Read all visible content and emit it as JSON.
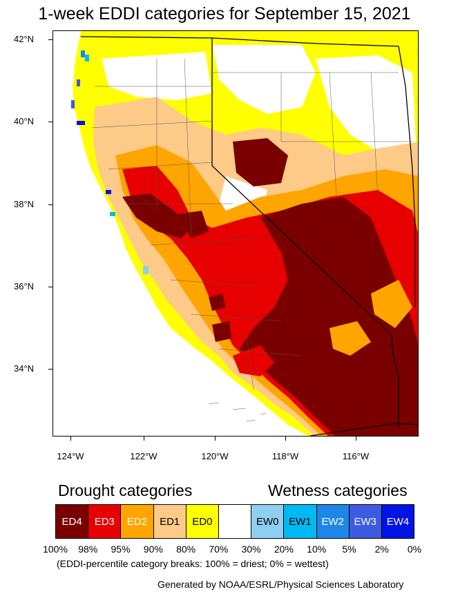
{
  "title": "1-week EDDI categories for September 15, 2021",
  "map": {
    "lat_labels": [
      "42°N",
      "40°N",
      "38°N",
      "36°N",
      "34°N"
    ],
    "lon_labels": [
      "124°W",
      "122°W",
      "120°W",
      "118°W",
      "116°W"
    ],
    "region": "California and Nevada"
  },
  "legend": {
    "drought_heading": "Drought categories",
    "wetness_heading": "Wetness categories",
    "categories": [
      {
        "label": "ED4",
        "color": "#7a0000",
        "text_color": "#ffffff"
      },
      {
        "label": "ED3",
        "color": "#e60000",
        "text_color": "#ffffff"
      },
      {
        "label": "ED2",
        "color": "#ffa500",
        "text_color": "#ffffff"
      },
      {
        "label": "ED1",
        "color": "#fdca88",
        "text_color": "#000000"
      },
      {
        "label": "ED0",
        "color": "#ffff00",
        "text_color": "#000000"
      },
      {
        "label": "",
        "color": "#ffffff",
        "text_color": "#000000"
      },
      {
        "label": "EW0",
        "color": "#8ecff0",
        "text_color": "#000000"
      },
      {
        "label": "EW1",
        "color": "#00b9f2",
        "text_color": "#000000"
      },
      {
        "label": "EW2",
        "color": "#1e86e8",
        "text_color": "#ffffff"
      },
      {
        "label": "EW3",
        "color": "#3d5ae0",
        "text_color": "#ffffff"
      },
      {
        "label": "EW4",
        "color": "#0014e6",
        "text_color": "#ffffff"
      }
    ],
    "percentiles": [
      "100%",
      "98%",
      "95%",
      "90%",
      "80%",
      "70%",
      "30%",
      "20%",
      "10%",
      "5%",
      "2%",
      "0%"
    ],
    "note": "(EDDI-percentile category breaks: 100% = driest; 0% = wettest)"
  },
  "credit": "Generated by NOAA/ESRL/Physical Sciences Laboratory"
}
